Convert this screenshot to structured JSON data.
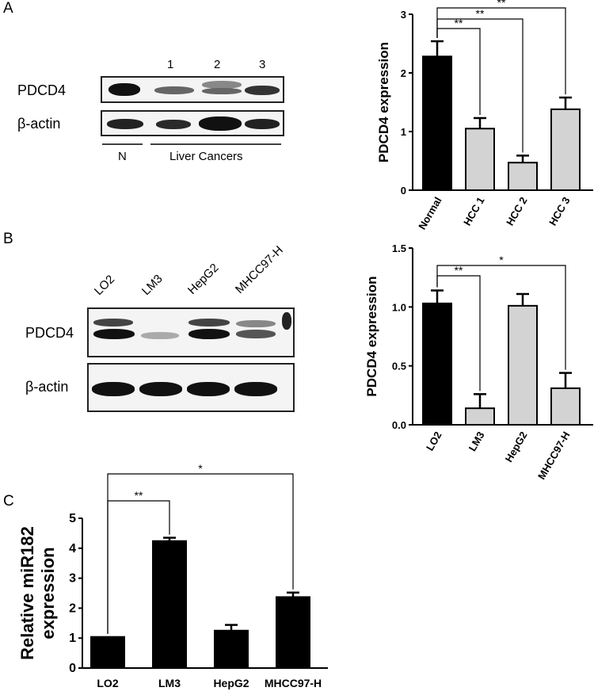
{
  "panels": {
    "A": {
      "letter": "A",
      "blot": {
        "rows": [
          "PDCD4",
          "β-actin"
        ],
        "lane_numbers": [
          "1",
          "2",
          "3"
        ],
        "group_n": "N",
        "group_cancer": "Liver Cancers"
      }
    },
    "B": {
      "letter": "B",
      "blot": {
        "rows": [
          "PDCD4",
          "β-actin"
        ],
        "lanes": [
          "LO2",
          "LM3",
          "HepG2",
          "MHCC97-H"
        ]
      }
    },
    "C": {
      "letter": "C"
    }
  },
  "chart_data": [
    {
      "id": "A",
      "type": "bar",
      "categories": [
        "Normal",
        "HCC 1",
        "HCC 2",
        "HCC 3"
      ],
      "values": [
        2.28,
        1.05,
        0.47,
        1.38
      ],
      "errors": [
        0.26,
        0.18,
        0.12,
        0.2
      ],
      "colors": [
        "#000000",
        "#d3d3d3",
        "#d3d3d3",
        "#d3d3d3"
      ],
      "ylabel": "PDCD4 expression",
      "ylim": [
        0,
        3
      ],
      "yticks": [
        "0",
        "1",
        "2",
        "3"
      ],
      "significance": [
        {
          "from": 0,
          "to": 1,
          "label": "**"
        },
        {
          "from": 0,
          "to": 2,
          "label": "**"
        },
        {
          "from": 0,
          "to": 3,
          "label": "**"
        }
      ]
    },
    {
      "id": "B",
      "type": "bar",
      "categories": [
        "LO2",
        "LM3",
        "HepG2",
        "MHCC97-H"
      ],
      "values": [
        1.03,
        0.14,
        1.01,
        0.31
      ],
      "errors": [
        0.11,
        0.12,
        0.1,
        0.13
      ],
      "colors": [
        "#000000",
        "#d3d3d3",
        "#d3d3d3",
        "#d3d3d3"
      ],
      "ylabel": "PDCD4 expression",
      "ylim": [
        0,
        1.5
      ],
      "yticks": [
        "0.0",
        "0.5",
        "1.0",
        "1.5"
      ],
      "significance": [
        {
          "from": 0,
          "to": 1,
          "label": "**"
        },
        {
          "from": 0,
          "to": 3,
          "label": "*"
        }
      ]
    },
    {
      "id": "C",
      "type": "bar",
      "categories": [
        "LO2",
        "LM3",
        "HepG2",
        "MHCC97-H"
      ],
      "values": [
        1.04,
        4.24,
        1.25,
        2.37
      ],
      "errors": [
        0.0,
        0.11,
        0.19,
        0.15
      ],
      "colors": [
        "#000000",
        "#000000",
        "#000000",
        "#000000"
      ],
      "ylabel_lines": [
        "Relative miR182",
        "expression"
      ],
      "ylim": [
        0,
        5
      ],
      "yticks": [
        "0",
        "1",
        "2",
        "3",
        "4",
        "5"
      ],
      "significance": [
        {
          "from": 0,
          "to": 1,
          "label": "**"
        },
        {
          "from": 0,
          "to": 3,
          "label": "*"
        }
      ]
    }
  ]
}
